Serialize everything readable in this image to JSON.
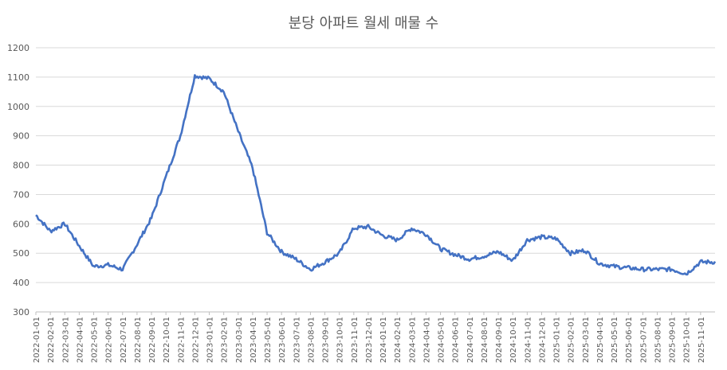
{
  "chart_data": {
    "type": "line",
    "title": "분당 아파트 월세 매물 수",
    "xlabel": "",
    "ylabel": "",
    "ylim": [
      300,
      1200
    ],
    "yticks": [
      "300",
      "400",
      "500",
      "600",
      "700",
      "800",
      "900",
      "1000",
      "1100",
      "1200"
    ],
    "grid": true,
    "legend": "none",
    "line_color": "#4472c4",
    "x": [
      "2022-01-01",
      "2022-02-01",
      "2022-03-01",
      "2022-04-01",
      "2022-05-01",
      "2022-06-01",
      "2022-07-01",
      "2022-08-01",
      "2022-09-01",
      "2022-10-01",
      "2022-11-01",
      "2022-12-01",
      "2023-01-01",
      "2023-02-01",
      "2023-03-01",
      "2023-04-01",
      "2023-05-01",
      "2023-06-01",
      "2023-07-01",
      "2023-08-01",
      "2023-09-01",
      "2023-10-01",
      "2023-11-01",
      "2023-12-01",
      "2024-01-01",
      "2024-02-01",
      "2024-03-01",
      "2024-04-01",
      "2024-05-01",
      "2024-06-01",
      "2024-07-01",
      "2024-08-01",
      "2024-09-01",
      "2024-10-01",
      "2024-11-01",
      "2024-12-01",
      "2025-01-01",
      "2025-02-01",
      "2025-03-01",
      "2025-04-01",
      "2025-05-01",
      "2025-06-01",
      "2025-07-01",
      "2025-08-01",
      "2025-09-01",
      "2025-10-01",
      "2025-11-01"
    ],
    "series": [
      {
        "values": [
          630,
          575,
          600,
          525,
          455,
          460,
          445,
          530,
          620,
          760,
          900,
          1105,
          1095,
          1050,
          915,
          790,
          570,
          505,
          480,
          445,
          470,
          500,
          585,
          590,
          560,
          545,
          585,
          565,
          515,
          495,
          480,
          490,
          505,
          475,
          545,
          555,
          550,
          500,
          510,
          465,
          455,
          450,
          445,
          445,
          445,
          430,
          470
        ]
      }
    ]
  }
}
